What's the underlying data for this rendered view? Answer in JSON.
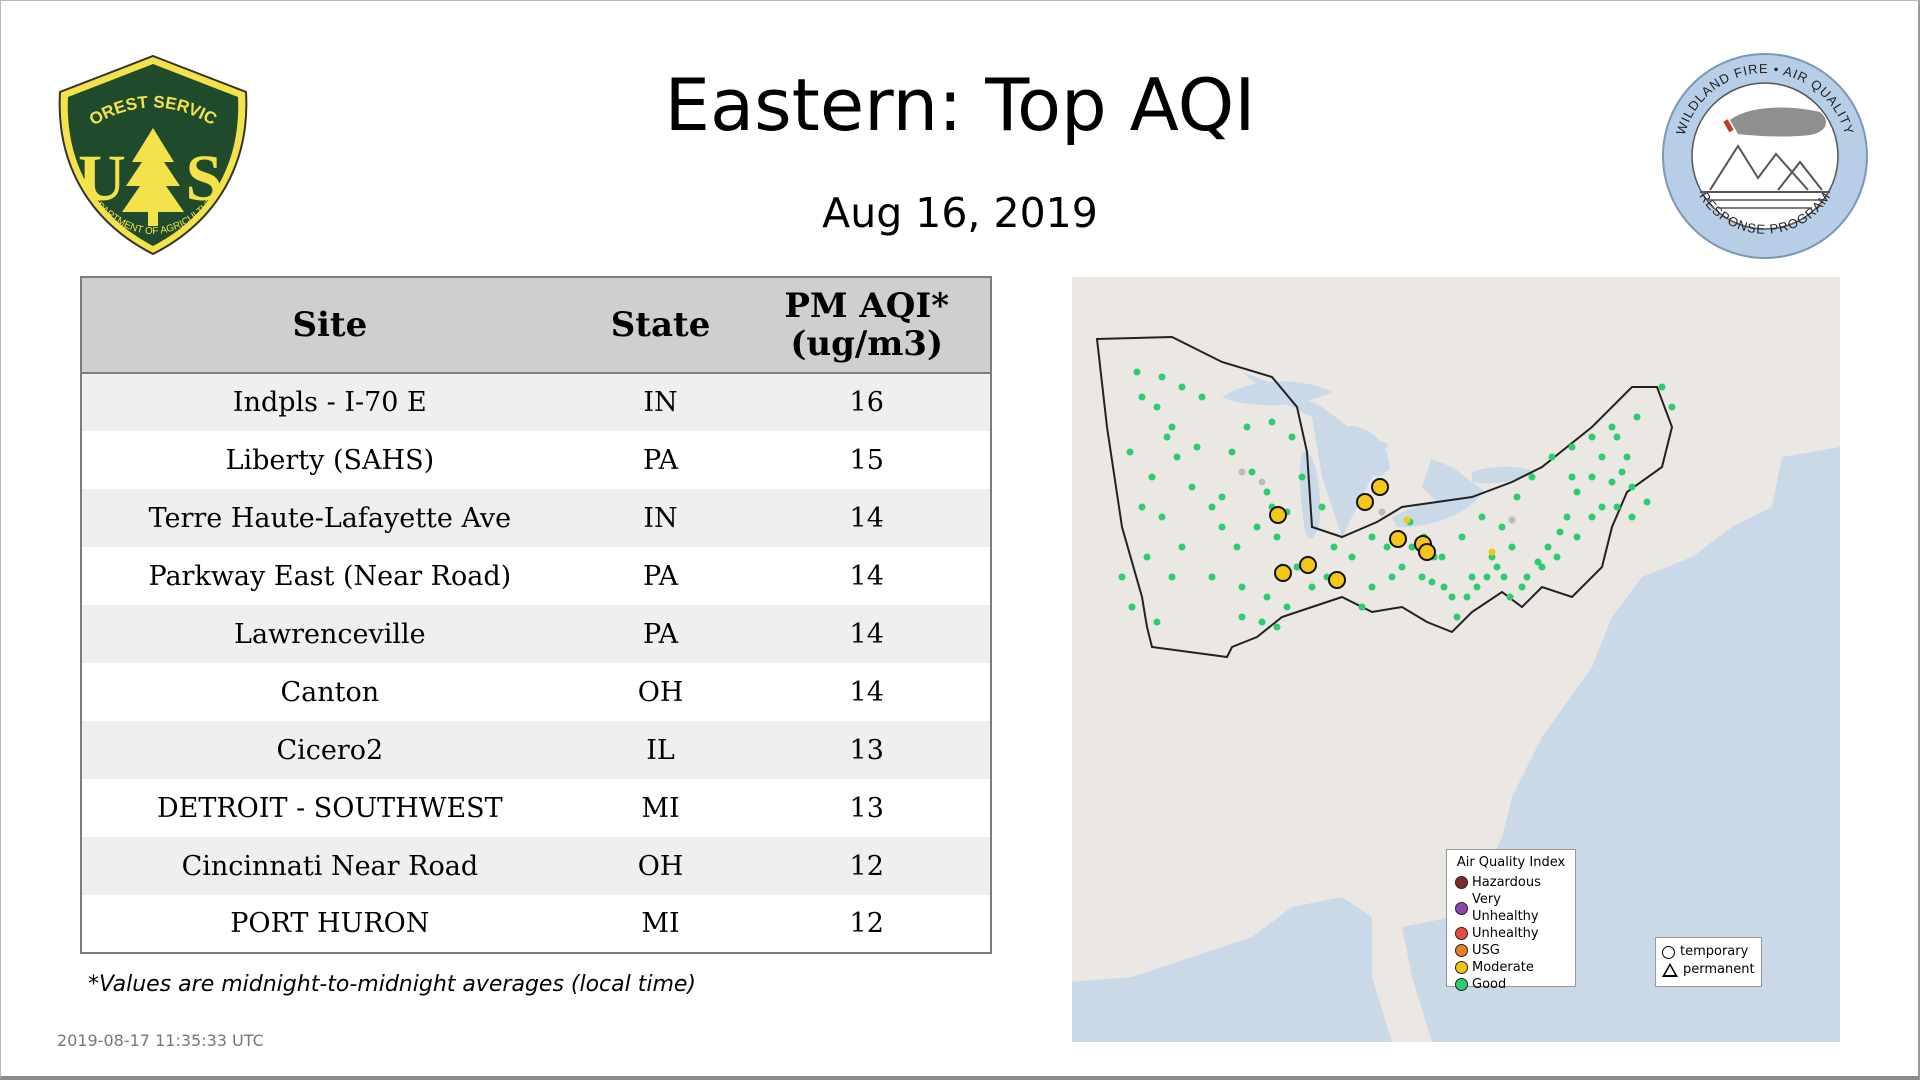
{
  "title": "Eastern: Top AQI",
  "date": "Aug 16, 2019",
  "logos": {
    "left_text_top": "FOREST SERVICE",
    "left_text_letters": "U S",
    "left_text_bottom": "DEPARTMENT OF AGRICULTURE",
    "right_text_top": "WILDLAND FIRE • AIR QUALITY",
    "right_text_bottom": "RESPONSE PROGRAM"
  },
  "table": {
    "headers": {
      "site": "Site",
      "state": "State",
      "aqi_line1": "PM AQI*",
      "aqi_line2": "(ug/m3)"
    },
    "rows": [
      {
        "site": "Indpls - I-70 E",
        "state": "IN",
        "aqi": "16"
      },
      {
        "site": "Liberty (SAHS)",
        "state": "PA",
        "aqi": "15"
      },
      {
        "site": "Terre Haute-Lafayette Ave",
        "state": "IN",
        "aqi": "14"
      },
      {
        "site": "Parkway East (Near Road)",
        "state": "PA",
        "aqi": "14"
      },
      {
        "site": "Lawrenceville",
        "state": "PA",
        "aqi": "14"
      },
      {
        "site": "Canton",
        "state": "OH",
        "aqi": "14"
      },
      {
        "site": "Cicero2",
        "state": "IL",
        "aqi": "13"
      },
      {
        "site": "DETROIT - SOUTHWEST",
        "state": "MI",
        "aqi": "13"
      },
      {
        "site": "Cincinnati Near Road",
        "state": "OH",
        "aqi": "12"
      },
      {
        "site": "PORT HURON",
        "state": "MI",
        "aqi": "12"
      }
    ]
  },
  "footnote": "*Values are midnight-to-midnight averages (local time)",
  "timestamp": "2019-08-17 11:35:33 UTC",
  "map": {
    "legend_title": "Air Quality Index",
    "legend_items": [
      {
        "label": "Hazardous",
        "color": "#7e2a2a"
      },
      {
        "label": "Very Unhealthy",
        "color": "#8e44ad"
      },
      {
        "label": "Unhealthy",
        "color": "#e74c3c"
      },
      {
        "label": "USG",
        "color": "#e67e22"
      },
      {
        "label": "Moderate",
        "color": "#f1c40f"
      },
      {
        "label": "Good",
        "color": "#2ecc71"
      }
    ],
    "shape_items": [
      {
        "label": "temporary",
        "shape": "circle"
      },
      {
        "label": "permanent",
        "shape": "triangle"
      }
    ],
    "colors": {
      "water": "#c9d9e8",
      "land": "#ebe7e3",
      "good": "#2ecc71",
      "moderate": "#f5c518",
      "inactive": "#bbbbbb"
    }
  }
}
